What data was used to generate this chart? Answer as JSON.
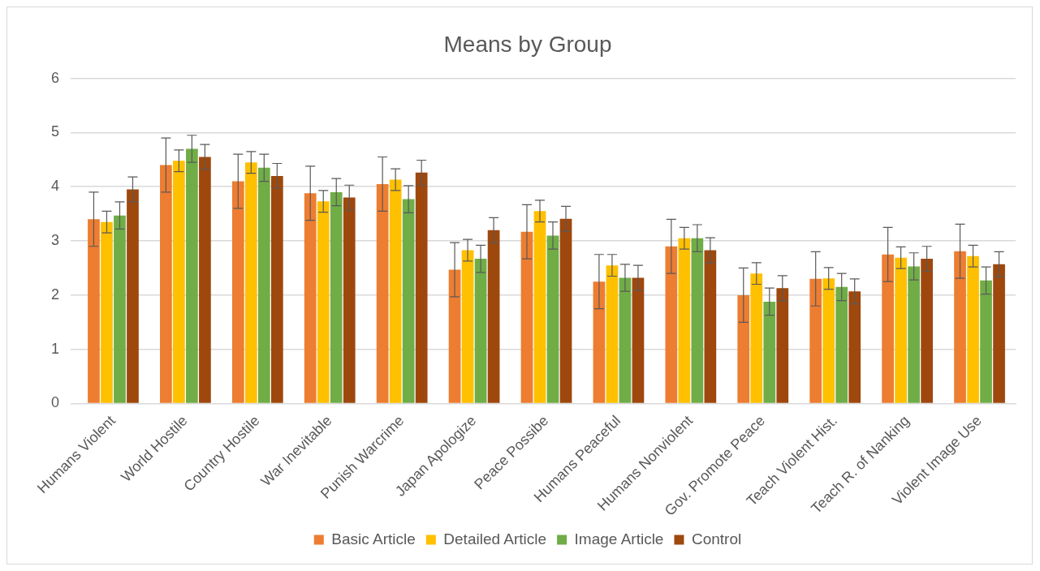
{
  "chart_data": {
    "type": "bar",
    "title": "Means by Group",
    "categories": [
      "Humans Violent",
      "World Hostile",
      "Country Hostile",
      "War Inevitable",
      "Punish Warcrime",
      "Japan Apologize",
      "Peace Possibe",
      "Humans Peaceful",
      "Humans Nonviolent",
      "Gov. Promote Peace",
      "Teach Violent Hist.",
      "Teach R. of Nanking",
      "Violent Image Use"
    ],
    "series": [
      {
        "name": "Basic Article",
        "color": "#ed7d31",
        "values": [
          3.4,
          4.4,
          4.1,
          3.88,
          4.05,
          2.47,
          3.17,
          2.25,
          2.9,
          2.0,
          2.3,
          2.75,
          2.81
        ],
        "errors": [
          0.5,
          0.5,
          0.5,
          0.5,
          0.5,
          0.5,
          0.5,
          0.5,
          0.5,
          0.5,
          0.5,
          0.5,
          0.5
        ]
      },
      {
        "name": "Detailed Article",
        "color": "#ffc000",
        "values": [
          3.35,
          4.48,
          4.45,
          3.73,
          4.13,
          2.83,
          3.55,
          2.55,
          3.05,
          2.4,
          2.31,
          2.69,
          2.72
        ],
        "errors": [
          0.2,
          0.2,
          0.2,
          0.2,
          0.2,
          0.2,
          0.2,
          0.2,
          0.2,
          0.2,
          0.2,
          0.2,
          0.2
        ]
      },
      {
        "name": "Image Article",
        "color": "#70ad47",
        "values": [
          3.47,
          4.7,
          4.35,
          3.9,
          3.77,
          2.67,
          3.1,
          2.32,
          3.05,
          1.88,
          2.15,
          2.53,
          2.27
        ],
        "errors": [
          0.25,
          0.25,
          0.25,
          0.25,
          0.25,
          0.25,
          0.25,
          0.25,
          0.25,
          0.25,
          0.25,
          0.25,
          0.25
        ]
      },
      {
        "name": "Control",
        "color": "#9e480e",
        "values": [
          3.95,
          4.55,
          4.2,
          3.8,
          4.26,
          3.2,
          3.41,
          2.32,
          2.83,
          2.13,
          2.07,
          2.67,
          2.57
        ],
        "errors": [
          0.23,
          0.23,
          0.23,
          0.23,
          0.23,
          0.23,
          0.23,
          0.23,
          0.23,
          0.23,
          0.23,
          0.23,
          0.23
        ]
      }
    ],
    "ylim": [
      0,
      6
    ],
    "yticks": [
      0,
      1,
      2,
      3,
      4,
      5,
      6
    ],
    "grid": "y",
    "legend": "bottom"
  }
}
